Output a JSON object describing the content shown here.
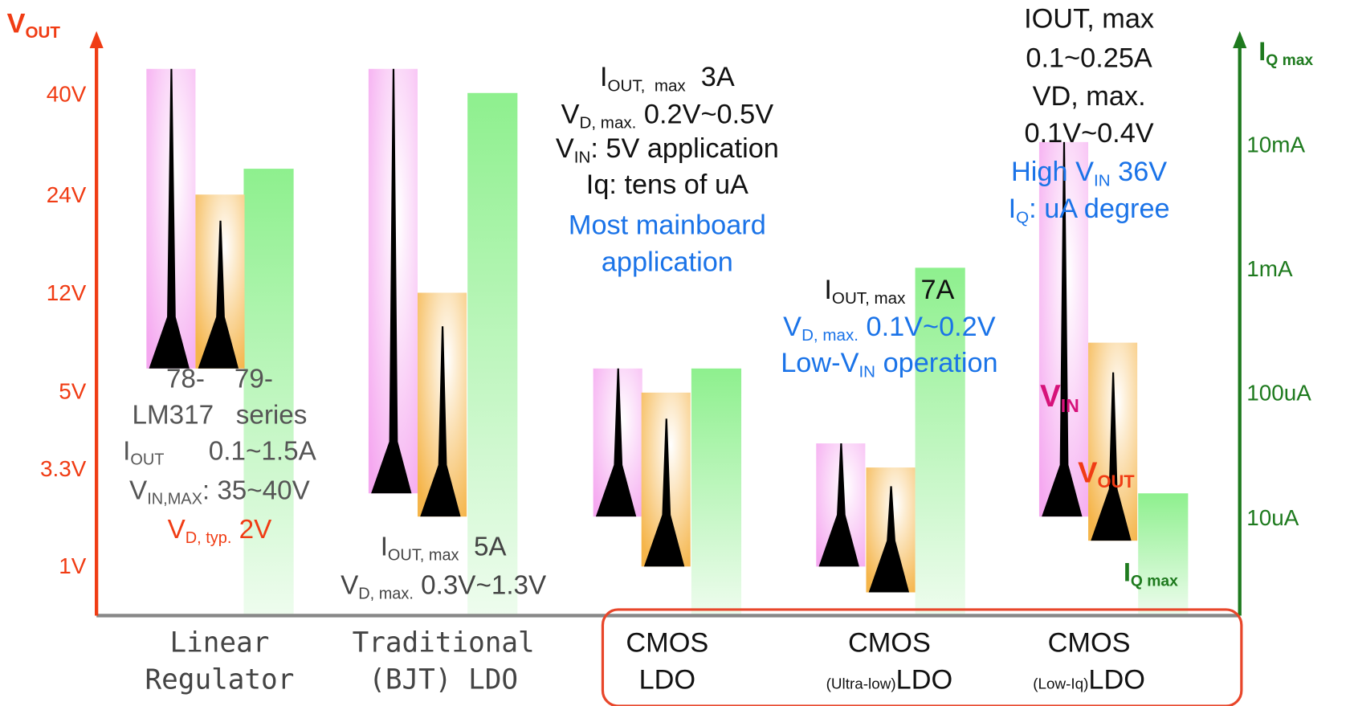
{
  "left_axis": {
    "title": {
      "main": "V",
      "sub": "OUT"
    },
    "ticks": [
      "40V",
      "24V",
      "12V",
      "5V",
      "3.3V",
      "1V"
    ],
    "color": "#f03c14"
  },
  "right_axis": {
    "title": {
      "main": "I",
      "sub": "Q max"
    },
    "ticks": [
      "10mA",
      "1mA",
      "100uA",
      "10uA"
    ],
    "color": "#1e7a1e"
  },
  "groups": [
    {
      "category": [
        "Linear",
        "Regulator"
      ],
      "notes": [
        {
          "main": "78-    79-"
        },
        {
          "main": "LM317   series"
        },
        {
          "main": "I",
          "sub": "OUT",
          "rest": "      0.1~1.5A"
        },
        {
          "main": "V",
          "sub": "IN,MAX",
          "rest": ": 35~40V"
        },
        {
          "main": "V",
          "sub": "D, typ.",
          "rest": " 2V",
          "color": "#f03c14"
        }
      ]
    },
    {
      "category": [
        "Traditional",
        "(BJT) LDO"
      ],
      "notes": [
        {
          "main": "I",
          "sub": "OUT, max",
          "rest": "  5A"
        },
        {
          "main": "V",
          "sub": "D, max.",
          "rest": " 0.3V~1.3V"
        }
      ]
    },
    {
      "category": [
        "CMOS",
        "LDO"
      ],
      "notes": [
        {
          "main": "I",
          "sub": "OUT,  max",
          "rest": "  3A"
        },
        {
          "main": "V",
          "sub": "D, max.",
          "rest": " 0.2V~0.5V"
        },
        {
          "main": "V",
          "sub": "IN",
          "rest": ": 5V application"
        },
        {
          "main": "Iq: tens of uA"
        },
        {
          "main": "Most mainboard",
          "color": "#1a73e8"
        },
        {
          "main": "application",
          "color": "#1a73e8"
        }
      ]
    },
    {
      "category": [
        "CMOS",
        {
          "pre": "(Ultra-low)",
          "main": "LDO"
        }
      ],
      "notes": [
        {
          "main": "I",
          "sub": "OUT, max",
          "rest": "  7A"
        },
        {
          "main": "V",
          "sub": "D, max.",
          "rest": " 0.1V~0.2V",
          "color": "#1a73e8"
        },
        {
          "main": "Low-V",
          "sub": "IN",
          "rest": " operation",
          "color": "#1a73e8"
        }
      ]
    },
    {
      "category": [
        "CMOS",
        {
          "pre": "(Low-Iq)",
          "main": "LDO"
        }
      ],
      "notes": [
        {
          "main": "IOUT, max"
        },
        {
          "main": "0.1~0.25A"
        },
        {
          "main": "VD, max."
        },
        {
          "main": "0.1V~0.4V"
        },
        {
          "main": "High V",
          "sub": "IN",
          "rest": " 36V",
          "color": "#1a73e8"
        },
        {
          "main": "I",
          "sub": "Q",
          "rest": ": uA degree",
          "color": "#1a73e8"
        }
      ]
    }
  ],
  "legend": [
    {
      "main": "V",
      "sub": "IN",
      "color": "#d6127a"
    },
    {
      "main": "V",
      "sub": "OUT",
      "color": "#f03c14"
    },
    {
      "main": "I",
      "sub": "Q max",
      "color": "#1e7a1e"
    }
  ]
}
